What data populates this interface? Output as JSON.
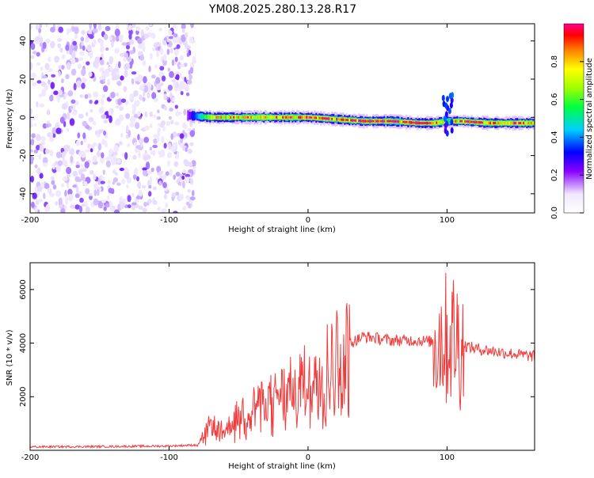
{
  "title": "YM08.2025.280.13.28.R17",
  "chart_data": [
    {
      "type": "heatmap",
      "title": "",
      "xlabel": "Height of straight line (km)",
      "ylabel": "Frequency (Hz)",
      "xlim": [
        -200,
        163
      ],
      "ylim": [
        -50,
        49
      ],
      "xticks": [
        -200,
        -100,
        0,
        100
      ],
      "xtick_labels": [
        "-200",
        "-100",
        "0",
        "100"
      ],
      "yticks": [
        -40,
        -20,
        0,
        20,
        40
      ],
      "ytick_labels": [
        "-40",
        "-20",
        "0",
        "20",
        "40"
      ],
      "noise_region_x": [
        -200,
        -85
      ],
      "signal_band": {
        "x": [
          -87,
          -70,
          -60,
          -50,
          -40,
          -30,
          -20,
          -10,
          0,
          20,
          40,
          60,
          80,
          90,
          100,
          110,
          130,
          163
        ],
        "freq": [
          1,
          0,
          0,
          0,
          0,
          0,
          0,
          0,
          0,
          -1,
          -2,
          -2,
          -3,
          -3,
          -2,
          -2,
          -3,
          -3
        ],
        "amplitude": [
          0.2,
          0.7,
          0.75,
          0.8,
          0.8,
          0.75,
          0.8,
          0.85,
          0.9,
          0.95,
          1.0,
          1.0,
          0.95,
          0.9,
          0.5,
          0.9,
          0.85,
          0.8
        ]
      },
      "colorbar": {
        "label": "Normalized spectral amplitude",
        "ticks": [
          0.0,
          0.2,
          0.4,
          0.6,
          0.8
        ],
        "tick_labels": [
          "0.0",
          "0.2",
          "0.4",
          "0.6",
          "0.8"
        ],
        "range": [
          0,
          1
        ]
      }
    },
    {
      "type": "line",
      "title": "",
      "xlabel": "Height of straight line (km)",
      "ylabel": "SNR (10 * v/v)",
      "xlim": [
        -200,
        163
      ],
      "ylim": [
        0,
        7000
      ],
      "xticks": [
        -200,
        -100,
        0,
        100
      ],
      "xtick_labels": [
        "-200",
        "-100",
        "0",
        "100"
      ],
      "yticks": [
        2000,
        4000,
        6000
      ],
      "ytick_labels": [
        "2000",
        "4000",
        "6000"
      ],
      "color": "#f03c3c",
      "series": [
        {
          "name": "SNR",
          "x": [
            -200,
            -150,
            -100,
            -80,
            -70,
            -60,
            -50,
            -40,
            -30,
            -20,
            -10,
            0,
            10,
            20,
            30,
            40,
            60,
            80,
            90,
            95,
            100,
            105,
            110,
            120,
            140,
            163
          ],
          "values": [
            130,
            140,
            160,
            200,
            1000,
            700,
            1400,
            1700,
            1900,
            2200,
            2500,
            2800,
            3300,
            3700,
            4000,
            4250,
            4100,
            4100,
            4050,
            4300,
            4100,
            4300,
            3950,
            3800,
            3650,
            3500
          ]
        }
      ]
    }
  ]
}
